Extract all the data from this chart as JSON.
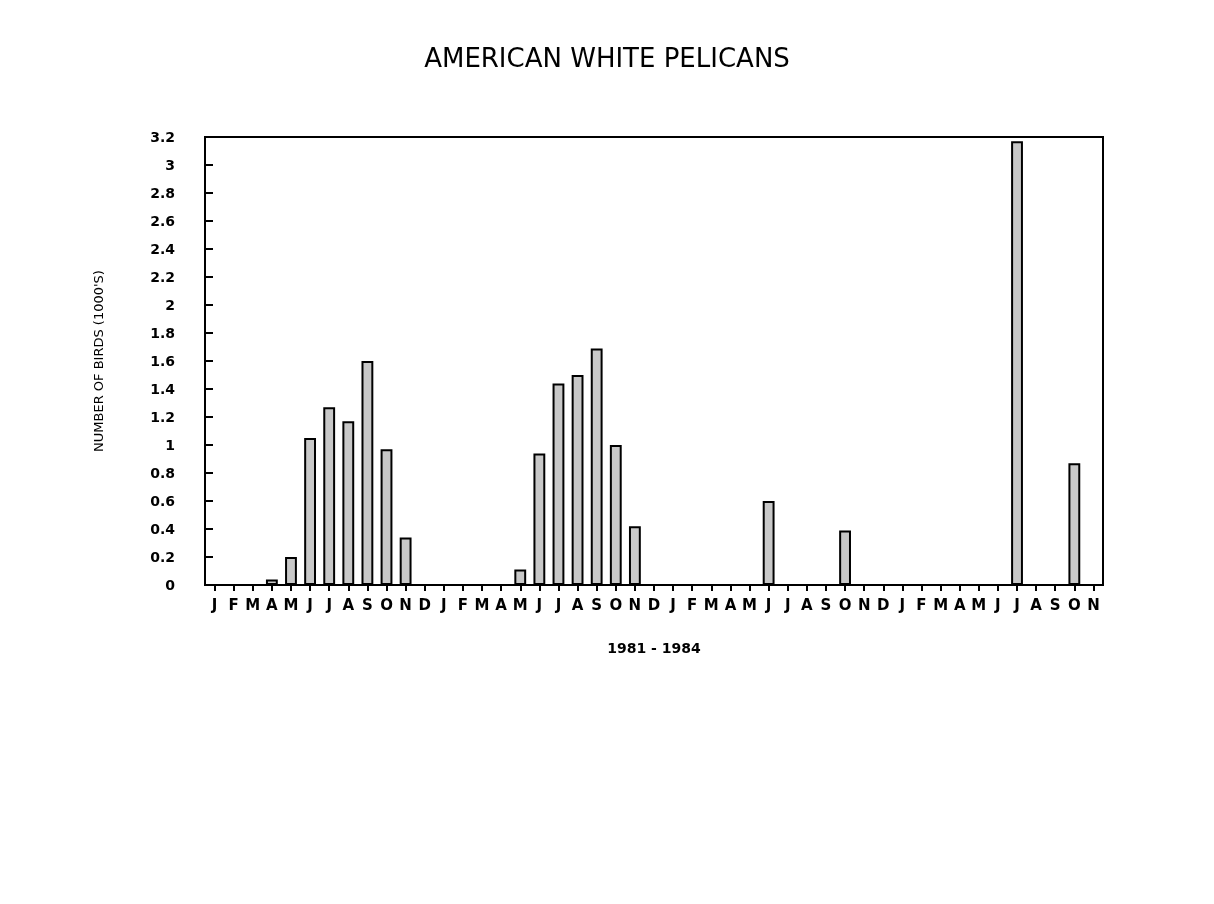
{
  "chart_data": {
    "type": "bar",
    "title": "AMERICAN WHITE PELICANS",
    "xlabel": "1981 - 1984",
    "ylabel": "NUMBER OF BIRDS (1000'S)",
    "categories": [
      "J",
      "F",
      "M",
      "A",
      "M",
      "J",
      "J",
      "A",
      "S",
      "O",
      "N",
      "D",
      "J",
      "F",
      "M",
      "A",
      "M",
      "J",
      "J",
      "A",
      "S",
      "O",
      "N",
      "D",
      "J",
      "F",
      "M",
      "A",
      "M",
      "J",
      "J",
      "A",
      "S",
      "O",
      "N",
      "D",
      "J",
      "F",
      "M",
      "A",
      "M",
      "J",
      "J",
      "A",
      "S",
      "O",
      "N"
    ],
    "values": [
      0,
      0,
      0,
      0.04,
      0.2,
      1.05,
      1.27,
      1.17,
      1.6,
      0.97,
      0.34,
      0,
      0,
      0,
      0,
      0,
      0.11,
      0.94,
      1.44,
      1.5,
      1.69,
      1.0,
      0.42,
      0,
      0,
      0,
      0,
      0,
      0,
      0.6,
      0,
      0,
      0,
      0.39,
      0,
      0,
      0,
      0,
      0,
      0,
      0,
      0,
      3.17,
      0,
      0,
      0.87,
      0
    ],
    "color": "#c8c8c8",
    "ylim": [
      0,
      3.2
    ],
    "yticks": [
      0,
      0.2,
      0.4,
      0.6,
      0.8,
      1,
      1.2,
      1.4,
      1.6,
      1.8,
      2,
      2.2,
      2.4,
      2.6,
      2.8,
      3,
      3.2
    ],
    "grid": false
  }
}
